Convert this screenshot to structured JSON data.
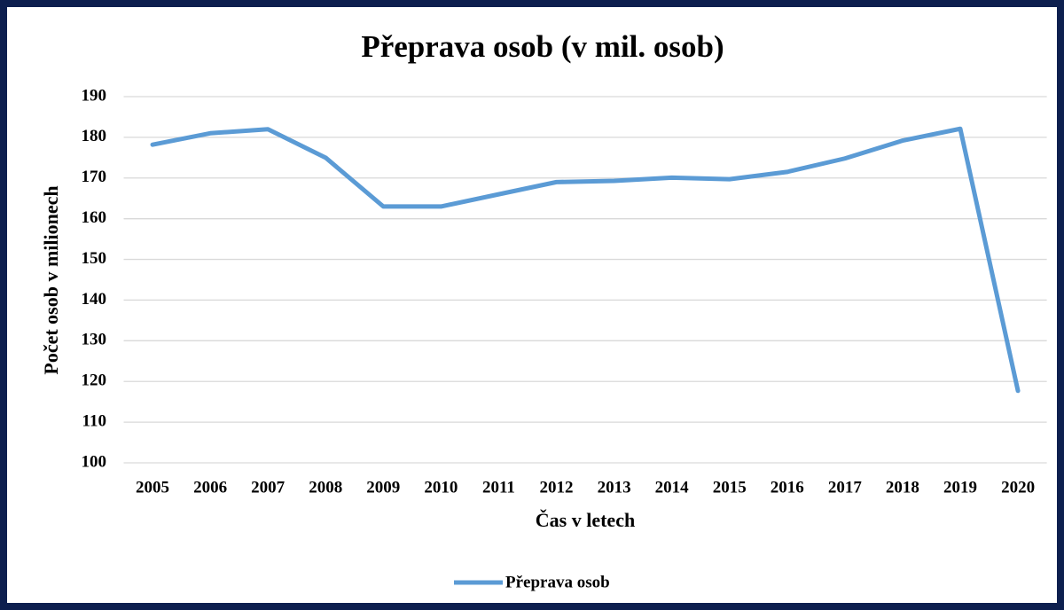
{
  "chart_data": {
    "type": "line",
    "title": "Přeprava osob (v mil. osob)",
    "x_label": "Čas v letech",
    "y_label": "Počet osob v milionech",
    "categories": [
      "2005",
      "2006",
      "2007",
      "2008",
      "2009",
      "2010",
      "2011",
      "2012",
      "2013",
      "2014",
      "2015",
      "2016",
      "2017",
      "2018",
      "2019",
      "2020"
    ],
    "series": [
      {
        "name": "Přeprava osob",
        "color": "#5b9bd5",
        "values": [
          178.2,
          181,
          182,
          175,
          163,
          163,
          166,
          169,
          169.3,
          170.1,
          169.7,
          171.5,
          174.8,
          179.2,
          182.1,
          117.7
        ]
      }
    ],
    "ylim": [
      100,
      190
    ],
    "yticks": [
      100,
      110,
      120,
      130,
      140,
      150,
      160,
      170,
      180,
      190
    ],
    "grid": true,
    "legend": "bottom"
  }
}
